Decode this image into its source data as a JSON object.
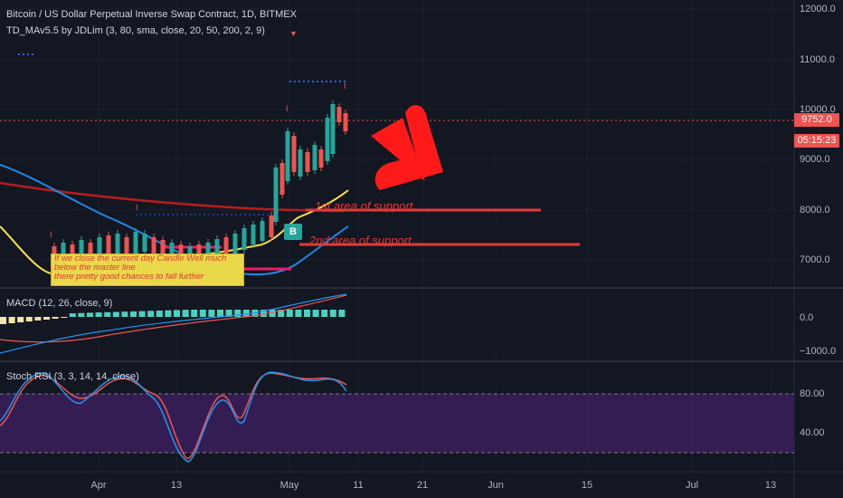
{
  "chart": {
    "title": "Bitcoin / US Dollar Perpetual Inverse Swap Contract, 1D, BITMEX",
    "indicator": "TD_MAv5.5 by JDLim (3, 80, sma, close, 20, 50, 200, 2, 9)",
    "price_labels": [
      "12000.0",
      "11000.0",
      "10000.0",
      "9000.0",
      "8000.0",
      "7000.0"
    ],
    "last_price": "9752.0",
    "countdown": "05:15:23",
    "buy_badge": "B",
    "colors": {
      "background": "#131722",
      "price_tag": "#ef5350",
      "support": "#e53935",
      "buy": "#26a69a",
      "rsi_band": "#4a2a6e"
    }
  },
  "annotations": {
    "support_1": "1st area of support",
    "support_2": "2nd area of support",
    "note_line1": "If we close the current day Candle Well much",
    "note_line2": "below the master line",
    "note_line3": "there pretty good chances to fall further"
  },
  "macd": {
    "title": "MACD (12, 26, close, 9)",
    "labels": [
      "0.0",
      "−1000.0"
    ]
  },
  "rsi": {
    "title": "Stoch RSI (3, 3, 14, 14, close)",
    "labels": [
      "80.00",
      "40.00"
    ]
  },
  "x_axis": {
    "labels": [
      "Apr",
      "13",
      "May",
      "11",
      "21",
      "Jun",
      "15",
      "Jul",
      "13"
    ]
  }
}
